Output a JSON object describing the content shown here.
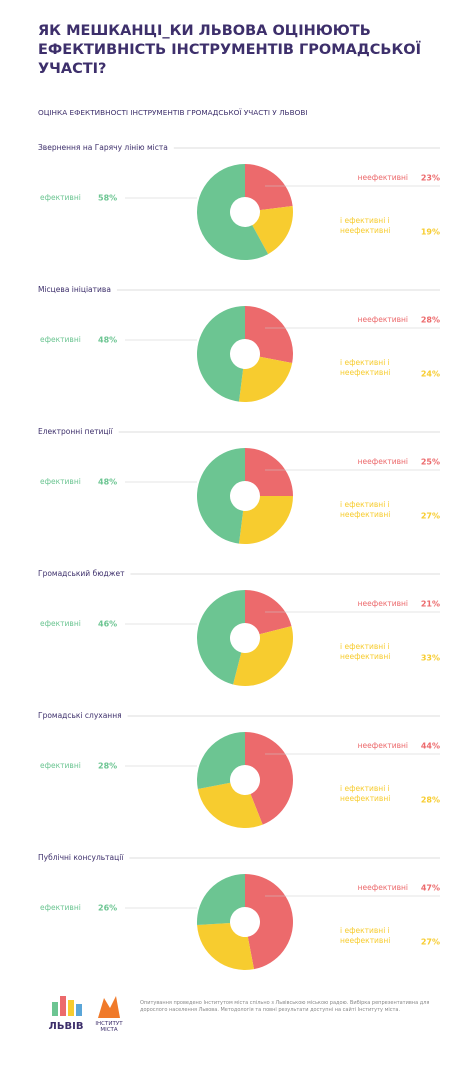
{
  "header": {
    "title": "ЯК МЕШКАНЦІ_КИ ЛЬВОВА ОЦІНЮЮТЬ ЕФЕКТИВНІСТЬ ІНСТРУМЕНТІВ ГРОМАДСЬКОЇ УЧАСТІ?",
    "subtitle": "ОЦІНКА ЕФЕКТИВНОСТІ ІНСТРУМЕНТІВ ГРОМАДСЬКОЇ УЧАСТІ У ЛЬВОВІ"
  },
  "chart_data": [
    {
      "type": "pie",
      "title": "Звернення на Гарячу лінію міста",
      "categories": [
        "ефективні",
        "неефективні",
        "і ефективні і неефективні"
      ],
      "values": [
        58,
        23,
        19
      ],
      "value_labels": [
        "58%",
        "23%",
        "19%"
      ],
      "colors": [
        "#6cc592",
        "#ec6a6c",
        "#f7cc2f"
      ]
    },
    {
      "type": "pie",
      "title": "Місцева ініціатива",
      "categories": [
        "ефективні",
        "неефективні",
        "і ефективні і неефективні"
      ],
      "values": [
        48,
        28,
        24
      ],
      "value_labels": [
        "48%",
        "28%",
        "24%"
      ],
      "colors": [
        "#6cc592",
        "#ec6a6c",
        "#f7cc2f"
      ]
    },
    {
      "type": "pie",
      "title": "Електронні петиції",
      "categories": [
        "ефективні",
        "неефективні",
        "і ефективні і неефективні"
      ],
      "values": [
        48,
        25,
        27
      ],
      "value_labels": [
        "48%",
        "25%",
        "27%"
      ],
      "colors": [
        "#6cc592",
        "#ec6a6c",
        "#f7cc2f"
      ]
    },
    {
      "type": "pie",
      "title": "Громадський бюджет",
      "categories": [
        "ефективні",
        "неефективні",
        "і ефективні і неефективні"
      ],
      "values": [
        46,
        21,
        33
      ],
      "value_labels": [
        "46%",
        "21%",
        "33%"
      ],
      "colors": [
        "#6cc592",
        "#ec6a6c",
        "#f7cc2f"
      ]
    },
    {
      "type": "pie",
      "title": "Громадські слухання",
      "categories": [
        "ефективні",
        "неефективні",
        "і ефективні і неефективні"
      ],
      "values": [
        28,
        44,
        28
      ],
      "value_labels": [
        "28%",
        "44%",
        "28%"
      ],
      "colors": [
        "#6cc592",
        "#ec6a6c",
        "#f7cc2f"
      ]
    },
    {
      "type": "pie",
      "title": "Публічні консультації",
      "categories": [
        "ефективні",
        "неефективні",
        "і ефективні і неефективні"
      ],
      "values": [
        26,
        47,
        27
      ],
      "value_labels": [
        "26%",
        "47%",
        "27%"
      ],
      "colors": [
        "#6cc592",
        "#ec6a6c",
        "#f7cc2f"
      ]
    }
  ],
  "footer": {
    "logo1": "ЛЬВІВ",
    "logo2": "ІНСТИТУТ МІСТА",
    "note": "Опитування проведено Інститутом міста спільно з Львівською міською радою. Вибірка репрезентативна для дорослого населення Львова. Методологія та повні результати доступні на сайті Інституту міста."
  }
}
